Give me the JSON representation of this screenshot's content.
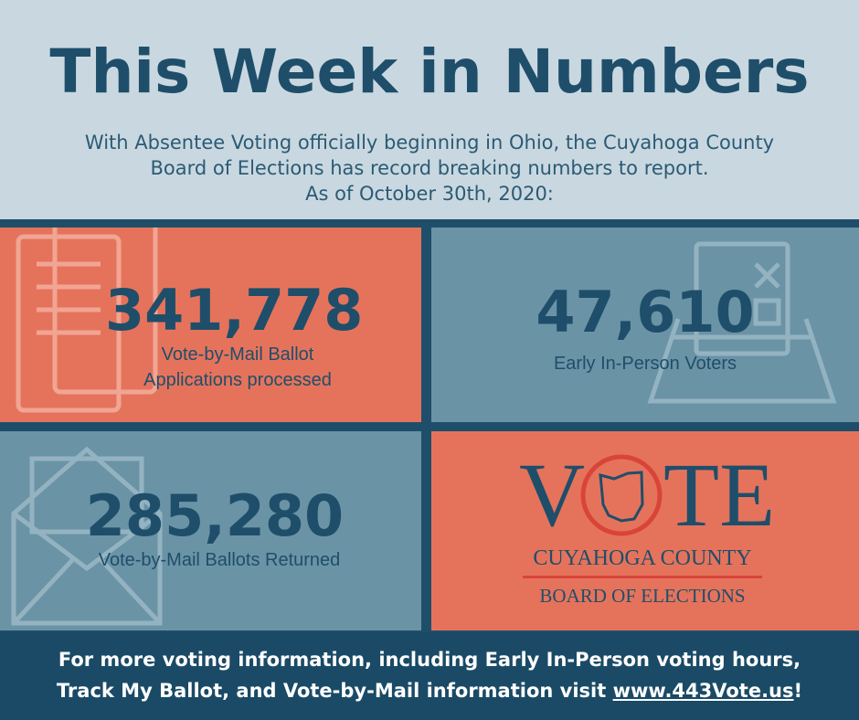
{
  "header": {
    "title": "This Week in Numbers",
    "subtitle": [
      "With Absentee Voting officially beginning in Ohio, the Cuyahoga County",
      "Board of Elections has record breaking numbers to report.",
      "As of October 30th, 2020:"
    ]
  },
  "tiles": [
    {
      "number": "341,778",
      "label": [
        "Vote-by-Mail Ballot",
        "Applications processed"
      ]
    },
    {
      "number": "47,610",
      "label": [
        "Early In-Person Voters"
      ]
    },
    {
      "number": "285,280",
      "label": [
        "Vote-by-Mail Ballots Returned"
      ]
    }
  ],
  "logo": {
    "word_start": "V",
    "word_end": "TE",
    "line1": "CUYAHOGA COUNTY",
    "line2": "BOARD OF ELECTIONS"
  },
  "footer": {
    "line1": "For more voting information, including Early In-Person voting hours,",
    "line2": "Track My Ballot, and Vote-by-Mail information visit ",
    "link": "www.443Vote.us",
    "line2_end": "!"
  }
}
